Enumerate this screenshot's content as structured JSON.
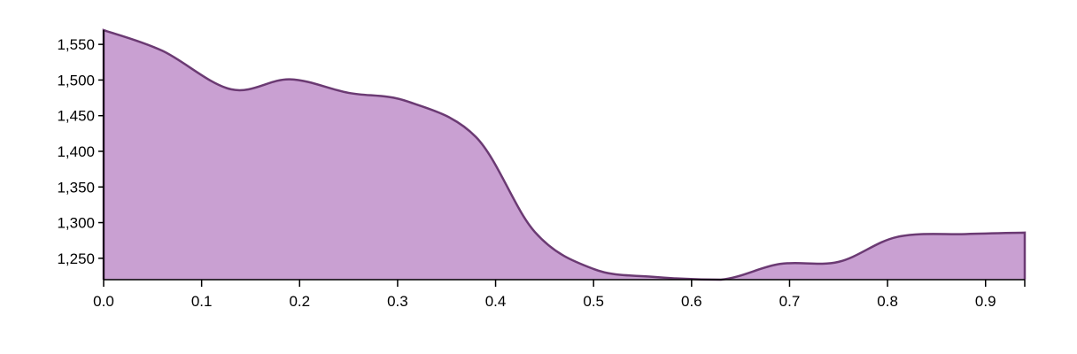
{
  "chart_data": {
    "type": "area",
    "title": "",
    "xlabel": "",
    "ylabel": "",
    "x": [
      0.0,
      0.06,
      0.13,
      0.19,
      0.25,
      0.31,
      0.38,
      0.44,
      0.5,
      0.56,
      0.63,
      0.69,
      0.75,
      0.81,
      0.88,
      0.94
    ],
    "series": [
      {
        "values": [
          1570,
          1541,
          1487,
          1501,
          1482,
          1470,
          1420,
          1287,
          1235,
          1224,
          1220,
          1242,
          1245,
          1280,
          1284,
          1286
        ]
      }
    ],
    "xlim": [
      0.0,
      0.94
    ],
    "ylim": [
      1220,
      1575
    ],
    "x_ticks": [
      "0.0",
      "0.1",
      "0.2",
      "0.3",
      "0.4",
      "0.5",
      "0.6",
      "0.7",
      "0.8",
      "0.9"
    ],
    "y_ticks": [
      "1,250",
      "1,300",
      "1,350",
      "1,400",
      "1,450",
      "1,500",
      "1,550"
    ],
    "grid": false,
    "legend": "none",
    "colors": {
      "fill": "#c9a0d2",
      "stroke": "#6b3a73"
    }
  }
}
